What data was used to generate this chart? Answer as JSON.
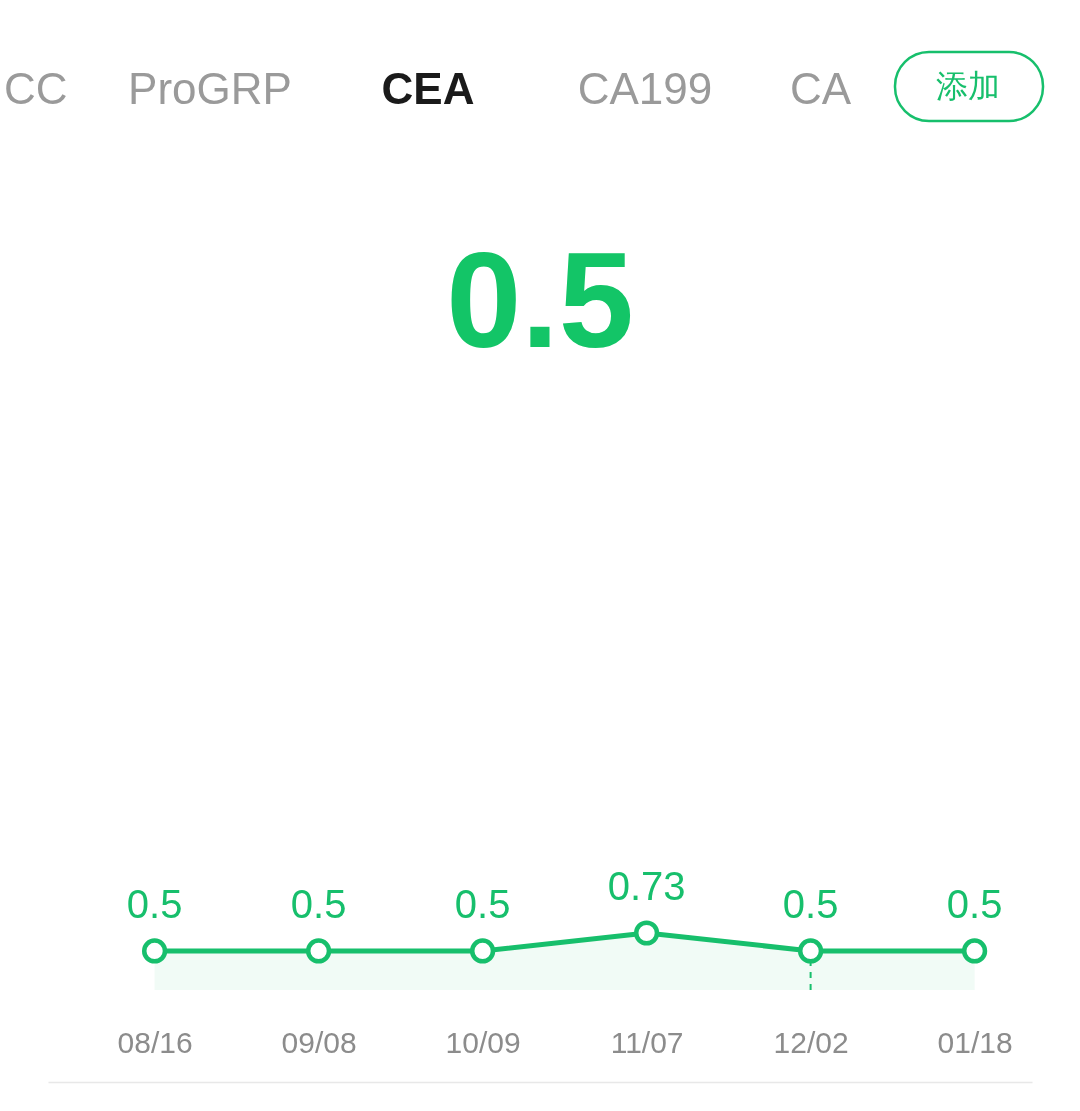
{
  "chart_data": {
    "type": "area",
    "title": "CEA",
    "subtitle": "0.5",
    "annotations": [
      "CC",
      "ProGRP",
      "CA199",
      "CA",
      "添加"
    ],
    "categories": [
      "08/16",
      "09/08",
      "10/09",
      "11/07",
      "12/02",
      "01/18"
    ],
    "values": [
      0.5,
      0.5,
      0.5,
      0.73,
      0.5,
      0.5
    ],
    "color": "#17bf6c",
    "marker": "circle",
    "data_labels": true,
    "tick_labels": "x",
    "ref_lines": [
      {
        "axis": "x",
        "value": "12/02",
        "color": "#17bf6c",
        "line_style": "dashed"
      }
    ]
  }
}
